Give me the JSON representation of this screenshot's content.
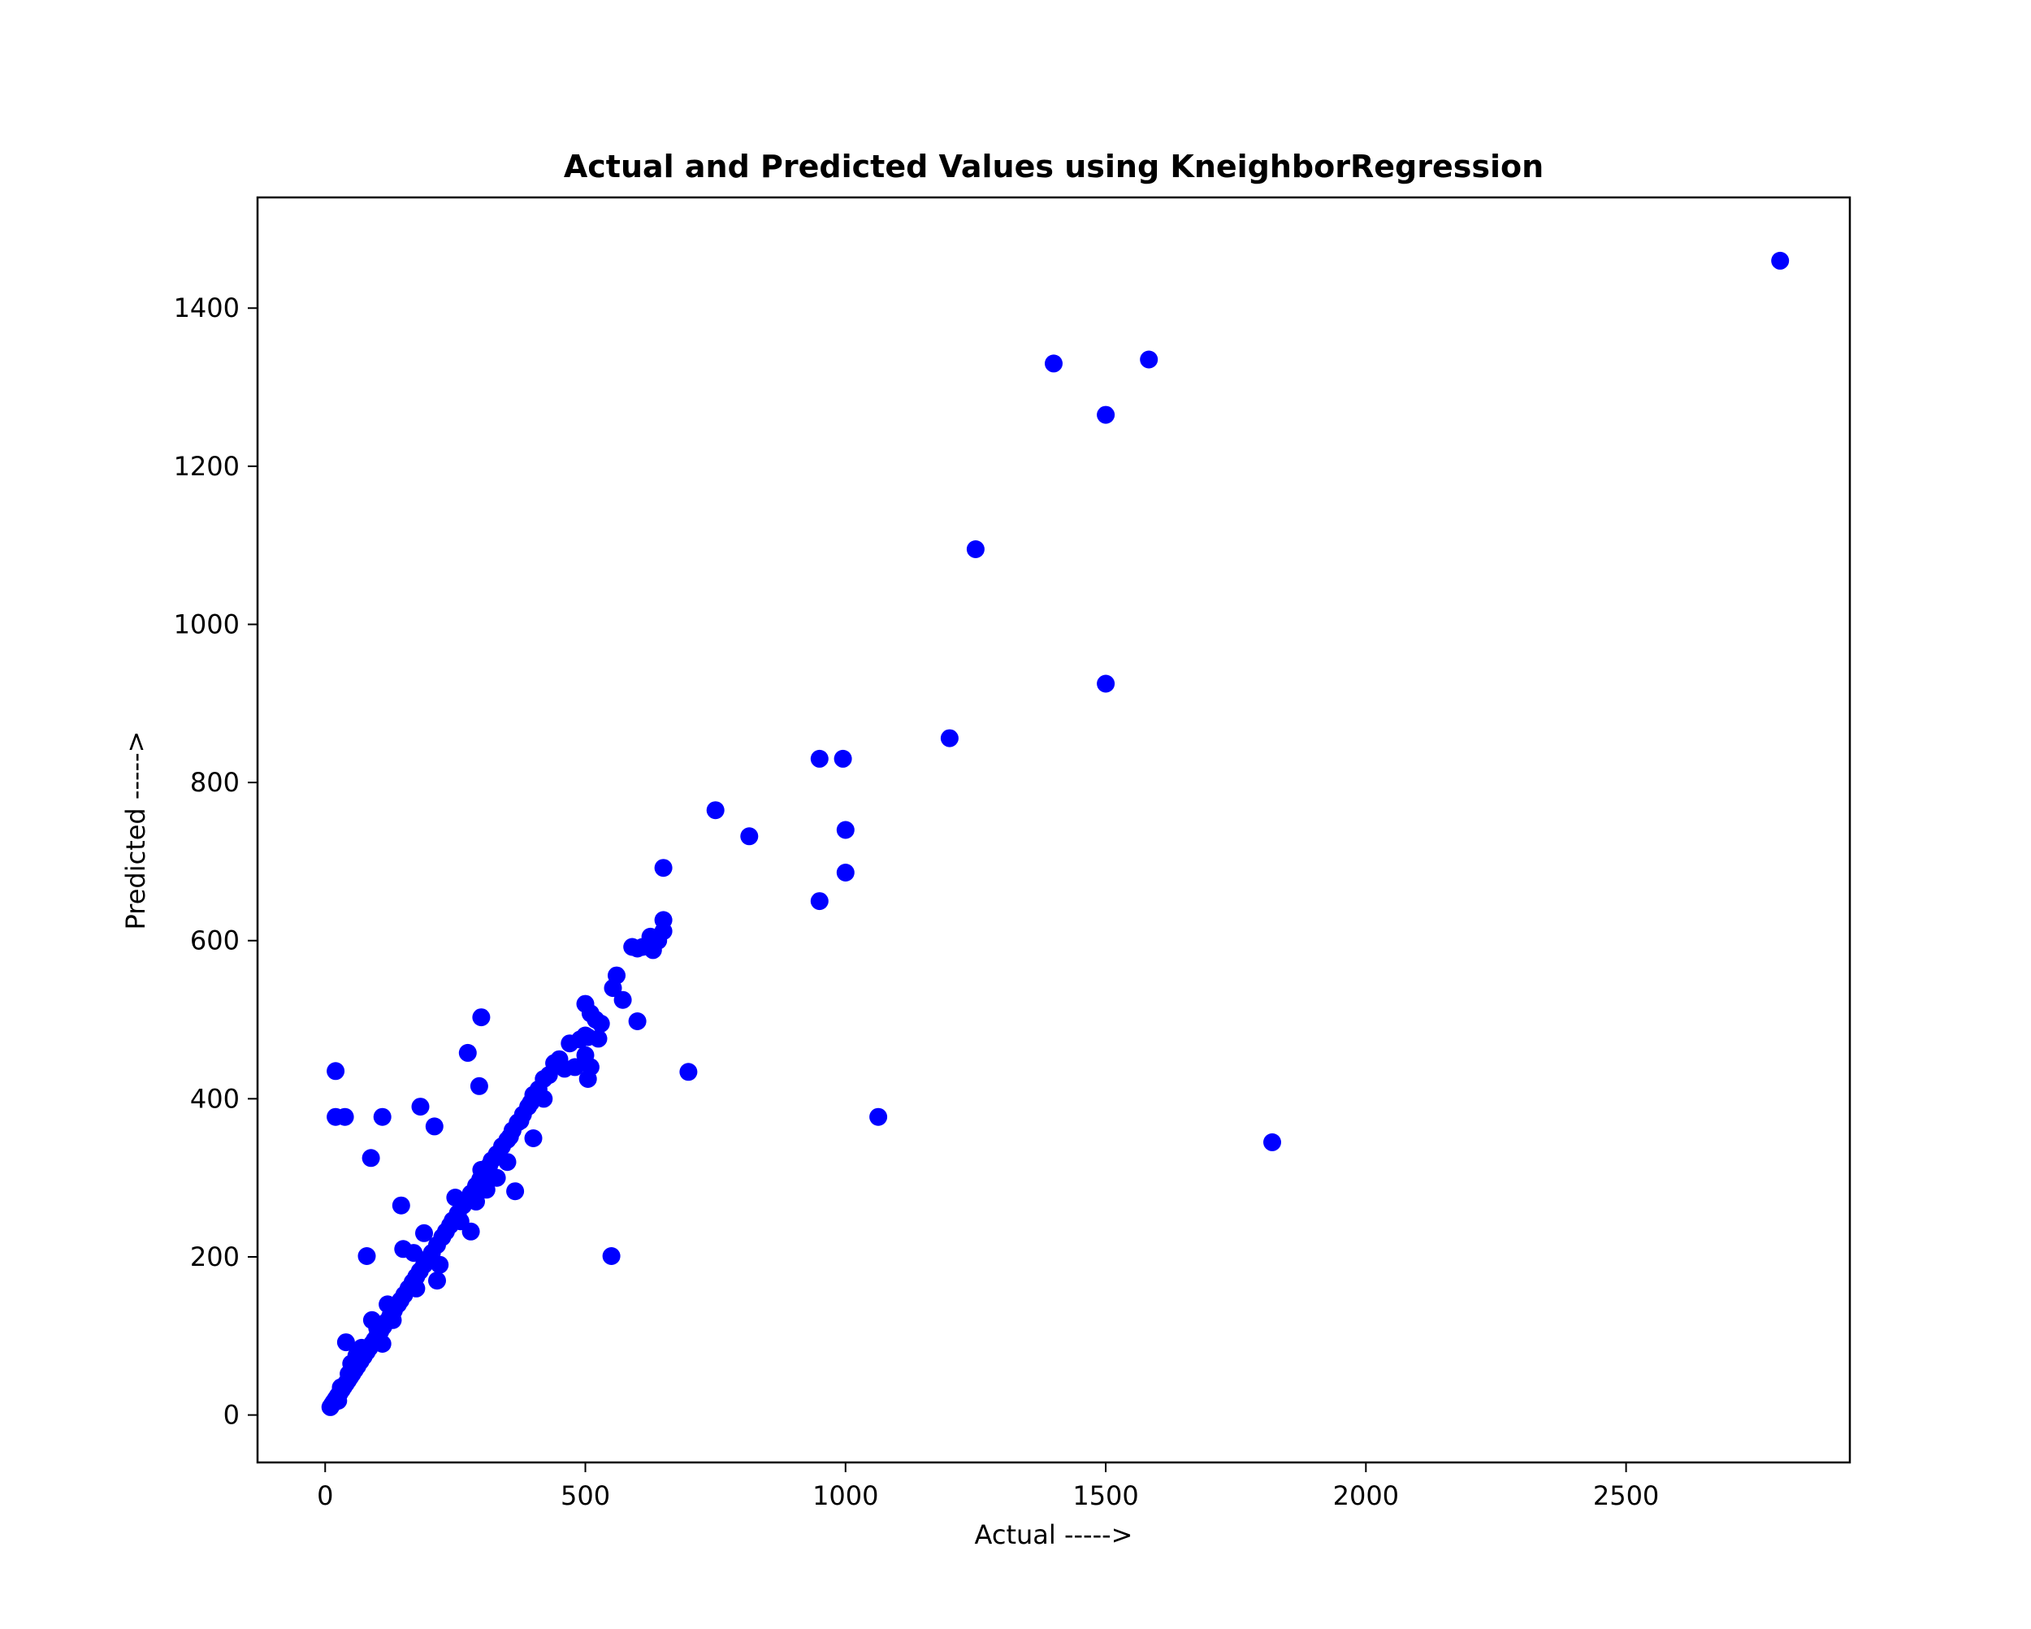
{
  "chart_data": {
    "type": "scatter",
    "title": "Actual and Predicted Values using KneighborRegression",
    "xlabel": "Actual ----->",
    "ylabel": "Predicted ----->",
    "xlim": [
      -130,
      2930
    ],
    "ylim": [
      -60,
      1540
    ],
    "xticks": [
      0,
      500,
      1000,
      1500,
      2000,
      2500
    ],
    "yticks": [
      0,
      200,
      400,
      600,
      800,
      1000,
      1200,
      1400
    ],
    "marker_color": "#0000ff",
    "grid": false,
    "x": [
      2796,
      1583,
      1400,
      1500,
      1250,
      1500,
      1200,
      950,
      995,
      1000,
      1000,
      950,
      750,
      815,
      650,
      650,
      650,
      1820,
      1063,
      698,
      600,
      590,
      610,
      625,
      640,
      630,
      560,
      553,
      572,
      500,
      510,
      520,
      530,
      500,
      505,
      510,
      525,
      480,
      505,
      450,
      440,
      460,
      430,
      420,
      410,
      400,
      395,
      390,
      380,
      370,
      375,
      360,
      355,
      350,
      340,
      330,
      320,
      315,
      305,
      298,
      290,
      280,
      270,
      265,
      255,
      245,
      240,
      232,
      225,
      215,
      205,
      198,
      190,
      182,
      175,
      168,
      160,
      152,
      145,
      140,
      132,
      125,
      118,
      112,
      106,
      100,
      95,
      90,
      85,
      80,
      74,
      68,
      62,
      57,
      52,
      48,
      44,
      40,
      36,
      32,
      28,
      24,
      20,
      16,
      13,
      10,
      20,
      20,
      38,
      110,
      88,
      183,
      210,
      274,
      300,
      296,
      146,
      80,
      550,
      600,
      500,
      365,
      280,
      290,
      300,
      260,
      250,
      220,
      215,
      200,
      190,
      175,
      170,
      150,
      130,
      120,
      110,
      100,
      90,
      70,
      60,
      50,
      45,
      40,
      30,
      25,
      310,
      330,
      350,
      400,
      420,
      470,
      490
    ],
    "y": [
      1460,
      1335,
      1330,
      1265,
      1095,
      925,
      856,
      830,
      830,
      740,
      686,
      650,
      765,
      732,
      692,
      626,
      612,
      345,
      377,
      434,
      498,
      592,
      592,
      605,
      600,
      588,
      556,
      540,
      525,
      520,
      508,
      500,
      495,
      480,
      478,
      440,
      476,
      440,
      425,
      450,
      445,
      438,
      430,
      425,
      412,
      405,
      395,
      390,
      380,
      370,
      372,
      360,
      352,
      348,
      340,
      330,
      322,
      315,
      305,
      298,
      290,
      280,
      270,
      265,
      255,
      246,
      240,
      232,
      225,
      215,
      205,
      198,
      190,
      182,
      175,
      168,
      160,
      152,
      145,
      140,
      132,
      125,
      118,
      112,
      106,
      100,
      95,
      90,
      85,
      80,
      74,
      68,
      62,
      57,
      52,
      48,
      44,
      40,
      36,
      32,
      28,
      24,
      20,
      16,
      13,
      10,
      435,
      377,
      377,
      377,
      325,
      390,
      365,
      458,
      503,
      416,
      265,
      201,
      201,
      590,
      455,
      283,
      232,
      270,
      310,
      245,
      275,
      190,
      170,
      195,
      230,
      160,
      205,
      210,
      120,
      140,
      90,
      110,
      120,
      85,
      75,
      65,
      52,
      92,
      35,
      18,
      285,
      300,
      320,
      350,
      400,
      470,
      475
    ]
  }
}
